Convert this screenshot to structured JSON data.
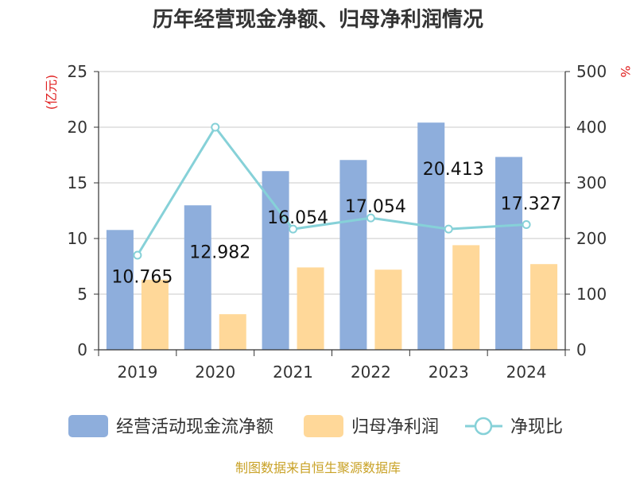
{
  "chart_data": {
    "type": "bar",
    "title": "历年经营现金净额、归母净利润情况",
    "categories": [
      "2019",
      "2020",
      "2021",
      "2022",
      "2023",
      "2024"
    ],
    "left_axis": {
      "unit": "(亿元)",
      "min": 0,
      "max": 25,
      "ticks": [
        0,
        5,
        10,
        15,
        20,
        25
      ]
    },
    "right_axis": {
      "unit": "%",
      "min": 0,
      "max": 500,
      "ticks": [
        0,
        100,
        200,
        300,
        400,
        500
      ]
    },
    "grid": true,
    "legend_position": "bottom",
    "series": [
      {
        "name": "经营活动现金流净额",
        "kind": "bar",
        "axis": "left",
        "color": "#8eaedc",
        "values": [
          10.765,
          12.982,
          16.054,
          17.054,
          20.413,
          17.327
        ],
        "labels": [
          "10.765",
          "12.982",
          "16.054",
          "17.054",
          "20.413",
          "17.327"
        ]
      },
      {
        "name": "归母净利润",
        "kind": "bar",
        "axis": "left",
        "color": "#ffd899",
        "values": [
          6.3,
          3.2,
          7.4,
          7.2,
          9.4,
          7.7
        ]
      },
      {
        "name": "净现比",
        "kind": "line",
        "axis": "right",
        "color": "#86d1d8",
        "values": [
          170,
          400,
          217,
          237,
          217,
          225
        ]
      }
    ],
    "source": "制图数据来自恒生聚源数据库"
  }
}
